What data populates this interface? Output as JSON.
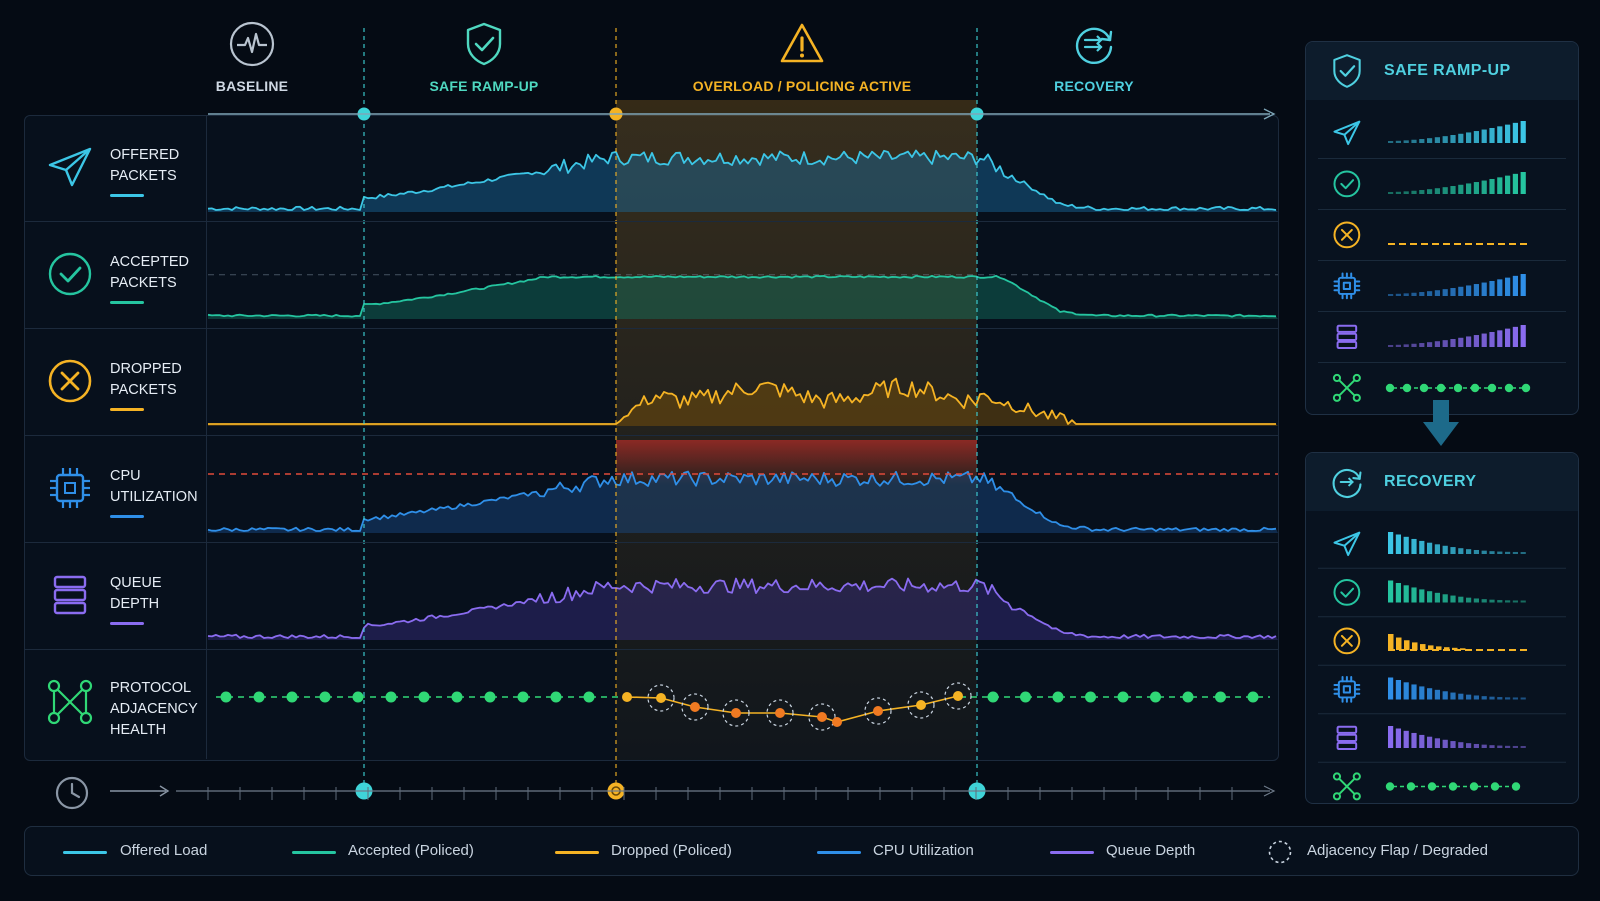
{
  "phases": [
    {
      "label": "BASELINE",
      "icon": "pulse-icon",
      "color": "#cfd8e3"
    },
    {
      "label": "SAFE RAMP-UP",
      "icon": "shield-check-icon",
      "color": "#4fd8c0"
    },
    {
      "label": "OVERLOAD / POLICING ACTIVE",
      "icon": "warning-triangle-icon",
      "color": "#f5b324"
    },
    {
      "label": "RECOVERY",
      "icon": "recovery-arrows-icon",
      "color": "#4fd0e0"
    }
  ],
  "rows": [
    {
      "label_line1": "OFFERED",
      "label_line2": "PACKETS",
      "label_line3": "",
      "icon": "send-plane-icon",
      "color": "#3cc6e6"
    },
    {
      "label_line1": "ACCEPTED",
      "label_line2": "PACKETS",
      "label_line3": "",
      "icon": "check-circle-icon",
      "color": "#25c5a0"
    },
    {
      "label_line1": "DROPPED",
      "label_line2": "PACKETS",
      "label_line3": "",
      "icon": "x-circle-icon",
      "color": "#f5b324"
    },
    {
      "label_line1": "CPU",
      "label_line2": "UTILIZATION",
      "label_line3": "",
      "icon": "cpu-chip-icon",
      "color": "#2f8fe8"
    },
    {
      "label_line1": "QUEUE",
      "label_line2": "DEPTH",
      "label_line3": "",
      "icon": "queue-stack-icon",
      "color": "#8a6cf0"
    },
    {
      "label_line1": "PROTOCOL",
      "label_line2": "ADJACENCY",
      "label_line3": "HEALTH",
      "icon": "network-nodes-icon",
      "color": "#30d876"
    }
  ],
  "side_panels": [
    {
      "title": "SAFE RAMP-UP",
      "icon": "shield-check-icon",
      "trend": "rising"
    },
    {
      "title": "RECOVERY",
      "icon": "recovery-arrows-icon",
      "trend": "falling"
    }
  ],
  "legend": [
    {
      "label": "Offered Load",
      "color": "#3cc6e6",
      "style": "line"
    },
    {
      "label": "Accepted (Policed)",
      "color": "#25c5a0",
      "style": "line"
    },
    {
      "label": "Dropped (Policed)",
      "color": "#f5b324",
      "style": "line"
    },
    {
      "label": "CPU Utilization",
      "color": "#2f8fe8",
      "style": "line"
    },
    {
      "label": "Queue Depth",
      "color": "#8a6cf0",
      "style": "line"
    },
    {
      "label": "Adjacency Flap / Degraded",
      "color": "#c9d4e0",
      "style": "dashed-circle"
    }
  ],
  "colors": {
    "background": "#050b14",
    "panel": "#07101c",
    "border": "#1c2a3c",
    "overload_band": "#f5a623",
    "cpu_threshold": "#e04a3a",
    "marker_cyan": "#3fd4d8",
    "marker_orange": "#f5b324"
  }
}
